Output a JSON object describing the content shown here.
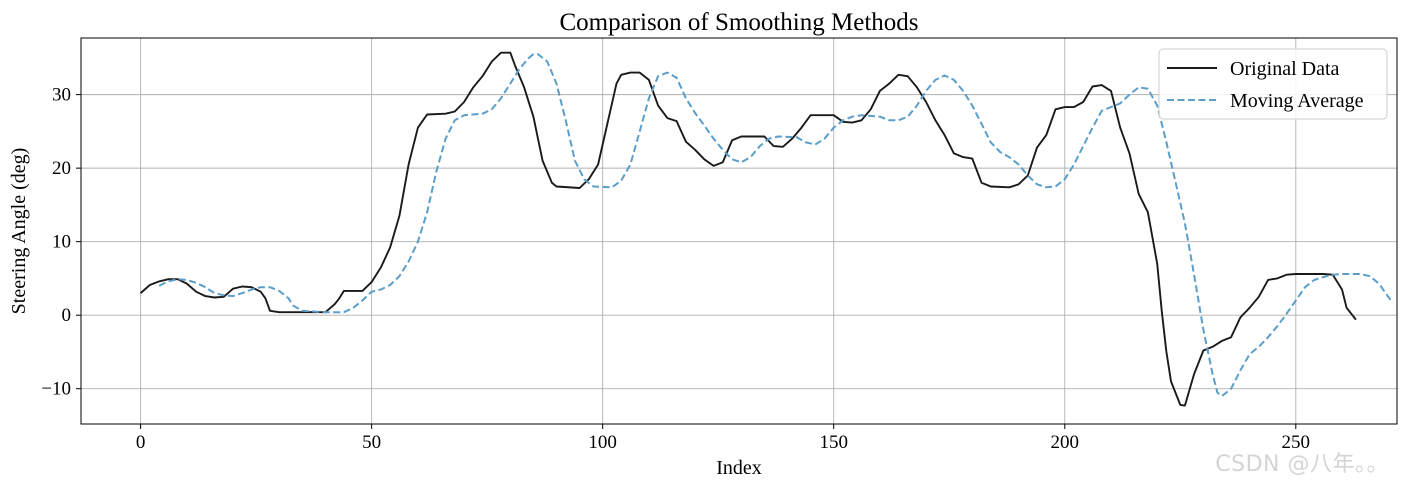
{
  "chart_data": {
    "type": "line",
    "title": "Comparison of Smoothing Methods",
    "xlabel": "Index",
    "ylabel": "Steering Angle (deg)",
    "xlim": [
      -12.9,
      271.9
    ],
    "ylim": [
      -14.8,
      37.7
    ],
    "xticks": [
      0,
      50,
      100,
      150,
      200,
      250
    ],
    "yticks": [
      -10,
      0,
      10,
      20,
      30
    ],
    "ytick_labels": [
      "−10",
      "0",
      "10",
      "20",
      "30"
    ],
    "grid": true,
    "legend_position": "top-right",
    "series": [
      {
        "name": "Original Data",
        "color": "#1a1a1a",
        "style": "solid",
        "points": [
          [
            0,
            3.0
          ],
          [
            2,
            4.1
          ],
          [
            4,
            4.6
          ],
          [
            6,
            4.9
          ],
          [
            8,
            4.9
          ],
          [
            10,
            4.3
          ],
          [
            12,
            3.2
          ],
          [
            14,
            2.6
          ],
          [
            16,
            2.4
          ],
          [
            18,
            2.5
          ],
          [
            20,
            3.6
          ],
          [
            22,
            3.9
          ],
          [
            24,
            3.8
          ],
          [
            26,
            3.2
          ],
          [
            27,
            2.3
          ],
          [
            28,
            0.6
          ],
          [
            30,
            0.4
          ],
          [
            35,
            0.4
          ],
          [
            40,
            0.4
          ],
          [
            42,
            1.5
          ],
          [
            43,
            2.3
          ],
          [
            44,
            3.3
          ],
          [
            48,
            3.3
          ],
          [
            50,
            4.5
          ],
          [
            52,
            6.5
          ],
          [
            54,
            9.2
          ],
          [
            56,
            13.5
          ],
          [
            58,
            20.5
          ],
          [
            60,
            25.5
          ],
          [
            62,
            27.3
          ],
          [
            66,
            27.4
          ],
          [
            68,
            27.7
          ],
          [
            70,
            29.0
          ],
          [
            72,
            31.0
          ],
          [
            74,
            32.5
          ],
          [
            76,
            34.5
          ],
          [
            78,
            35.7
          ],
          [
            80,
            35.7
          ],
          [
            81,
            34.0
          ],
          [
            83,
            31.0
          ],
          [
            85,
            27.0
          ],
          [
            87,
            21.0
          ],
          [
            89,
            18.0
          ],
          [
            90,
            17.5
          ],
          [
            95,
            17.3
          ],
          [
            97,
            18.5
          ],
          [
            99,
            20.5
          ],
          [
            101,
            26.0
          ],
          [
            103,
            31.5
          ],
          [
            104,
            32.7
          ],
          [
            106,
            33.0
          ],
          [
            108,
            33.0
          ],
          [
            110,
            32.0
          ],
          [
            112,
            28.5
          ],
          [
            114,
            26.8
          ],
          [
            116,
            26.4
          ],
          [
            118,
            23.6
          ],
          [
            120,
            22.5
          ],
          [
            122,
            21.2
          ],
          [
            124,
            20.3
          ],
          [
            126,
            20.8
          ],
          [
            128,
            23.8
          ],
          [
            130,
            24.3
          ],
          [
            135,
            24.3
          ],
          [
            137,
            23.0
          ],
          [
            139,
            22.9
          ],
          [
            141,
            24.0
          ],
          [
            143,
            25.5
          ],
          [
            145,
            27.2
          ],
          [
            150,
            27.2
          ],
          [
            152,
            26.3
          ],
          [
            154,
            26.2
          ],
          [
            156,
            26.5
          ],
          [
            158,
            28.0
          ],
          [
            160,
            30.5
          ],
          [
            162,
            31.5
          ],
          [
            164,
            32.7
          ],
          [
            166,
            32.5
          ],
          [
            168,
            31.0
          ],
          [
            170,
            29.0
          ],
          [
            172,
            26.5
          ],
          [
            174,
            24.5
          ],
          [
            176,
            22.0
          ],
          [
            178,
            21.5
          ],
          [
            180,
            21.3
          ],
          [
            182,
            18.0
          ],
          [
            184,
            17.5
          ],
          [
            188,
            17.4
          ],
          [
            190,
            17.8
          ],
          [
            192,
            19.0
          ],
          [
            194,
            22.8
          ],
          [
            196,
            24.5
          ],
          [
            198,
            28.0
          ],
          [
            200,
            28.3
          ],
          [
            202,
            28.3
          ],
          [
            204,
            29.0
          ],
          [
            206,
            31.1
          ],
          [
            208,
            31.3
          ],
          [
            210,
            30.5
          ],
          [
            212,
            25.5
          ],
          [
            214,
            22.0
          ],
          [
            216,
            16.5
          ],
          [
            218,
            14.0
          ],
          [
            220,
            7.0
          ],
          [
            221,
            0.5
          ],
          [
            222,
            -5.0
          ],
          [
            223,
            -9.0
          ],
          [
            225,
            -12.2
          ],
          [
            226,
            -12.3
          ],
          [
            228,
            -8.0
          ],
          [
            230,
            -4.8
          ],
          [
            232,
            -4.3
          ],
          [
            234,
            -3.5
          ],
          [
            236,
            -3.0
          ],
          [
            238,
            -0.3
          ],
          [
            240,
            1.0
          ],
          [
            242,
            2.5
          ],
          [
            244,
            4.8
          ],
          [
            246,
            5.0
          ],
          [
            248,
            5.5
          ],
          [
            250,
            5.6
          ],
          [
            256,
            5.6
          ],
          [
            258,
            5.5
          ],
          [
            260,
            3.5
          ],
          [
            261,
            1.0
          ],
          [
            263,
            -0.6
          ]
        ]
      },
      {
        "name": "Moving Average",
        "color": "#5b9ec9",
        "style": "dashed",
        "points": [
          [
            4,
            4.0
          ],
          [
            6,
            4.6
          ],
          [
            8,
            4.9
          ],
          [
            10,
            4.8
          ],
          [
            12,
            4.4
          ],
          [
            14,
            3.8
          ],
          [
            16,
            3.0
          ],
          [
            18,
            2.7
          ],
          [
            20,
            2.6
          ],
          [
            22,
            3.0
          ],
          [
            24,
            3.5
          ],
          [
            26,
            3.8
          ],
          [
            28,
            3.8
          ],
          [
            30,
            3.3
          ],
          [
            32,
            2.3
          ],
          [
            33,
            1.3
          ],
          [
            35,
            0.6
          ],
          [
            40,
            0.4
          ],
          [
            44,
            0.4
          ],
          [
            46,
            1.0
          ],
          [
            48,
            2.0
          ],
          [
            50,
            3.2
          ],
          [
            52,
            3.5
          ],
          [
            54,
            4.1
          ],
          [
            56,
            5.3
          ],
          [
            58,
            7.3
          ],
          [
            60,
            10.0
          ],
          [
            62,
            14.0
          ],
          [
            64,
            19.5
          ],
          [
            66,
            24.0
          ],
          [
            68,
            26.5
          ],
          [
            70,
            27.2
          ],
          [
            74,
            27.4
          ],
          [
            76,
            28.0
          ],
          [
            78,
            29.5
          ],
          [
            80,
            31.5
          ],
          [
            82,
            33.5
          ],
          [
            84,
            35.0
          ],
          [
            85,
            35.5
          ],
          [
            86,
            35.5
          ],
          [
            88,
            34.5
          ],
          [
            90,
            31.5
          ],
          [
            92,
            26.5
          ],
          [
            94,
            21.0
          ],
          [
            96,
            18.5
          ],
          [
            98,
            17.5
          ],
          [
            102,
            17.4
          ],
          [
            104,
            18.3
          ],
          [
            106,
            20.5
          ],
          [
            108,
            25.0
          ],
          [
            110,
            29.5
          ],
          [
            112,
            32.5
          ],
          [
            114,
            33.0
          ],
          [
            116,
            32.3
          ],
          [
            118,
            29.5
          ],
          [
            120,
            27.5
          ],
          [
            122,
            25.8
          ],
          [
            124,
            24.0
          ],
          [
            126,
            22.5
          ],
          [
            128,
            21.2
          ],
          [
            130,
            20.8
          ],
          [
            132,
            21.5
          ],
          [
            134,
            23.0
          ],
          [
            136,
            24.0
          ],
          [
            138,
            24.3
          ],
          [
            142,
            24.2
          ],
          [
            144,
            23.5
          ],
          [
            146,
            23.2
          ],
          [
            148,
            24.0
          ],
          [
            150,
            25.5
          ],
          [
            152,
            26.5
          ],
          [
            154,
            27.0
          ],
          [
            156,
            27.2
          ],
          [
            160,
            27.0
          ],
          [
            162,
            26.5
          ],
          [
            164,
            26.5
          ],
          [
            166,
            27.0
          ],
          [
            168,
            28.5
          ],
          [
            170,
            30.5
          ],
          [
            172,
            32.0
          ],
          [
            174,
            32.6
          ],
          [
            176,
            32.0
          ],
          [
            178,
            30.5
          ],
          [
            180,
            28.5
          ],
          [
            182,
            26.0
          ],
          [
            184,
            23.5
          ],
          [
            186,
            22.2
          ],
          [
            188,
            21.5
          ],
          [
            190,
            20.5
          ],
          [
            192,
            19.0
          ],
          [
            194,
            17.8
          ],
          [
            196,
            17.4
          ],
          [
            198,
            17.5
          ],
          [
            200,
            18.5
          ],
          [
            202,
            20.5
          ],
          [
            204,
            23.0
          ],
          [
            206,
            25.5
          ],
          [
            208,
            27.8
          ],
          [
            210,
            28.3
          ],
          [
            212,
            28.8
          ],
          [
            214,
            30.0
          ],
          [
            216,
            31.0
          ],
          [
            218,
            30.8
          ],
          [
            220,
            28.5
          ],
          [
            222,
            23.5
          ],
          [
            224,
            18.0
          ],
          [
            226,
            12.5
          ],
          [
            228,
            5.5
          ],
          [
            230,
            -2.0
          ],
          [
            232,
            -8.0
          ],
          [
            233,
            -10.5
          ],
          [
            234,
            -11.0
          ],
          [
            236,
            -10.0
          ],
          [
            238,
            -7.5
          ],
          [
            240,
            -5.3
          ],
          [
            242,
            -4.3
          ],
          [
            244,
            -3.0
          ],
          [
            246,
            -1.5
          ],
          [
            248,
            0.2
          ],
          [
            250,
            2.0
          ],
          [
            252,
            3.8
          ],
          [
            254,
            4.8
          ],
          [
            256,
            5.2
          ],
          [
            258,
            5.5
          ],
          [
            260,
            5.6
          ],
          [
            264,
            5.6
          ],
          [
            266,
            5.3
          ],
          [
            268,
            4.3
          ],
          [
            270,
            2.5
          ],
          [
            271,
            1.7
          ]
        ]
      }
    ],
    "x_offset_note": "x data values are index"
  },
  "watermark": "CSDN @八年。。"
}
